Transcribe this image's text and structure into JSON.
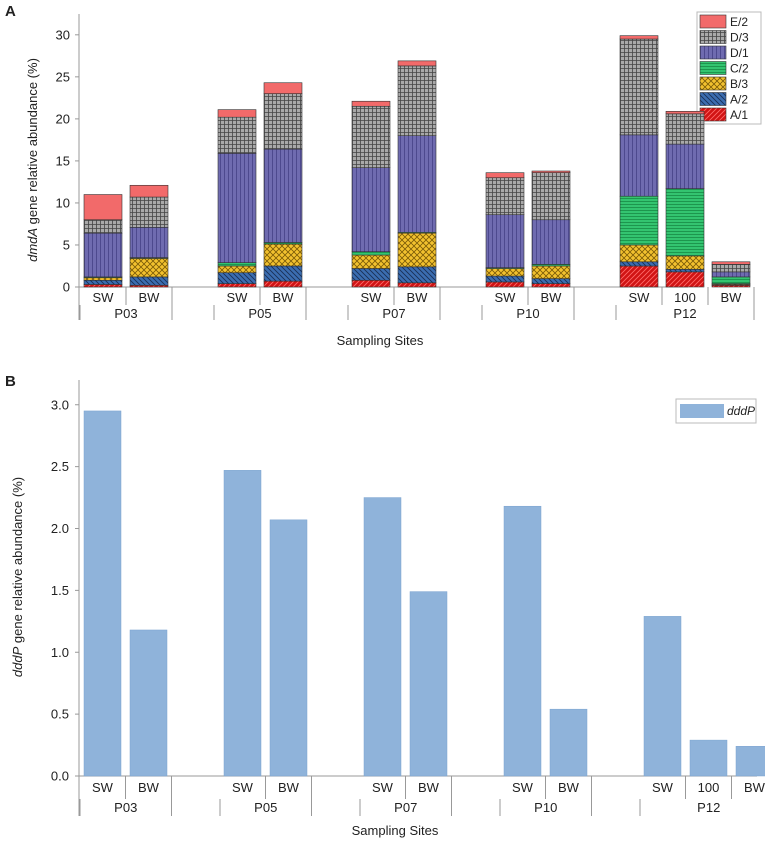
{
  "colors": {
    "E/2": "#f26a6a",
    "D/3": "#a9a9a9",
    "D/1": "#6f6bb0",
    "C/2": "#33c470",
    "B/3": "#f2c12e",
    "A/2": "#3b6db0",
    "A/1": "#d11414",
    "dddP": "#8fb3da"
  },
  "chart_data": [
    {
      "panel": "A",
      "type": "bar",
      "stacked": true,
      "ylabel_italic": "dmdA",
      "ylabel_rest": " gene relative abundance (%)",
      "xlabel": "Sampling Sites",
      "ylim": [
        0,
        32
      ],
      "yticks": [
        0,
        5,
        10,
        15,
        20,
        25,
        30
      ],
      "legend": [
        "E/2",
        "D/3",
        "D/1",
        "C/2",
        "B/3",
        "A/2",
        "A/1"
      ],
      "legend_position": "top-right",
      "groups": [
        {
          "site": "P03",
          "bars": [
            {
              "label": "SW",
              "values": {
                "A/1": 0.3,
                "A/2": 0.5,
                "B/3": 0.3,
                "C/2": 0.1,
                "D/1": 5.2,
                "D/3": 1.6,
                "E/2": 3.0
              }
            },
            {
              "label": "BW",
              "values": {
                "A/1": 0.2,
                "A/2": 1.0,
                "B/3": 2.2,
                "C/2": 0.1,
                "D/1": 3.6,
                "D/3": 3.6,
                "E/2": 1.4
              }
            }
          ]
        },
        {
          "site": "P05",
          "bars": [
            {
              "label": "SW",
              "values": {
                "A/1": 0.4,
                "A/2": 1.3,
                "B/3": 0.8,
                "C/2": 0.4,
                "D/1": 13.0,
                "D/3": 4.3,
                "E/2": 0.9
              }
            },
            {
              "label": "BW",
              "values": {
                "A/1": 0.7,
                "A/2": 1.8,
                "B/3": 2.6,
                "C/2": 0.2,
                "D/1": 11.1,
                "D/3": 6.6,
                "E/2": 1.3
              }
            }
          ]
        },
        {
          "site": "P07",
          "bars": [
            {
              "label": "SW",
              "values": {
                "A/1": 0.8,
                "A/2": 1.4,
                "B/3": 1.6,
                "C/2": 0.4,
                "D/1": 10.0,
                "D/3": 7.3,
                "E/2": 0.6
              }
            },
            {
              "label": "BW",
              "values": {
                "A/1": 0.5,
                "A/2": 1.9,
                "B/3": 4.0,
                "C/2": 0.1,
                "D/1": 11.5,
                "D/3": 8.3,
                "E/2": 0.6
              }
            }
          ]
        },
        {
          "site": "P10",
          "bars": [
            {
              "label": "SW",
              "values": {
                "A/1": 0.6,
                "A/2": 0.7,
                "B/3": 0.9,
                "C/2": 0.1,
                "D/1": 6.3,
                "D/3": 4.4,
                "E/2": 0.6
              }
            },
            {
              "label": "BW",
              "values": {
                "A/1": 0.4,
                "A/2": 0.6,
                "B/3": 1.5,
                "C/2": 0.2,
                "D/1": 5.3,
                "D/3": 5.6,
                "E/2": 0.2
              }
            }
          ]
        },
        {
          "site": "P12",
          "bars": [
            {
              "label": "SW",
              "values": {
                "A/1": 2.5,
                "A/2": 0.5,
                "B/3": 2.0,
                "C/2": 5.8,
                "D/1": 7.3,
                "D/3": 11.4,
                "E/2": 0.4
              }
            },
            {
              "label": "100",
              "values": {
                "A/1": 1.8,
                "A/2": 0.3,
                "B/3": 1.6,
                "C/2": 8.0,
                "D/1": 5.3,
                "D/3": 3.6,
                "E/2": 0.3
              }
            },
            {
              "label": "BW",
              "values": {
                "A/1": 0.2,
                "A/2": 0.1,
                "B/3": 0.1,
                "C/2": 0.8,
                "D/1": 0.6,
                "D/3": 0.9,
                "E/2": 0.3
              }
            }
          ]
        }
      ]
    },
    {
      "panel": "B",
      "type": "bar",
      "series_name": "dddP",
      "ylabel_italic": "dddP",
      "ylabel_rest": " gene relative abundance (%)",
      "xlabel": "Sampling Sites",
      "ylim": [
        0,
        3.2
      ],
      "yticks": [
        "0.0",
        "0.5",
        "1.0",
        "1.5",
        "2.0",
        "2.5",
        "3.0"
      ],
      "legend": [
        "dddP"
      ],
      "legend_position": "top-right",
      "groups": [
        {
          "site": "P03",
          "bars": [
            {
              "label": "SW",
              "value": 2.95
            },
            {
              "label": "BW",
              "value": 1.18
            }
          ]
        },
        {
          "site": "P05",
          "bars": [
            {
              "label": "SW",
              "value": 2.47
            },
            {
              "label": "BW",
              "value": 2.07
            }
          ]
        },
        {
          "site": "P07",
          "bars": [
            {
              "label": "SW",
              "value": 2.25
            },
            {
              "label": "BW",
              "value": 1.49
            }
          ]
        },
        {
          "site": "P10",
          "bars": [
            {
              "label": "SW",
              "value": 2.18
            },
            {
              "label": "BW",
              "value": 0.54
            }
          ]
        },
        {
          "site": "P12",
          "bars": [
            {
              "label": "SW",
              "value": 1.29
            },
            {
              "label": "100",
              "value": 0.29
            },
            {
              "label": "BW",
              "value": 0.24
            }
          ]
        }
      ]
    }
  ]
}
